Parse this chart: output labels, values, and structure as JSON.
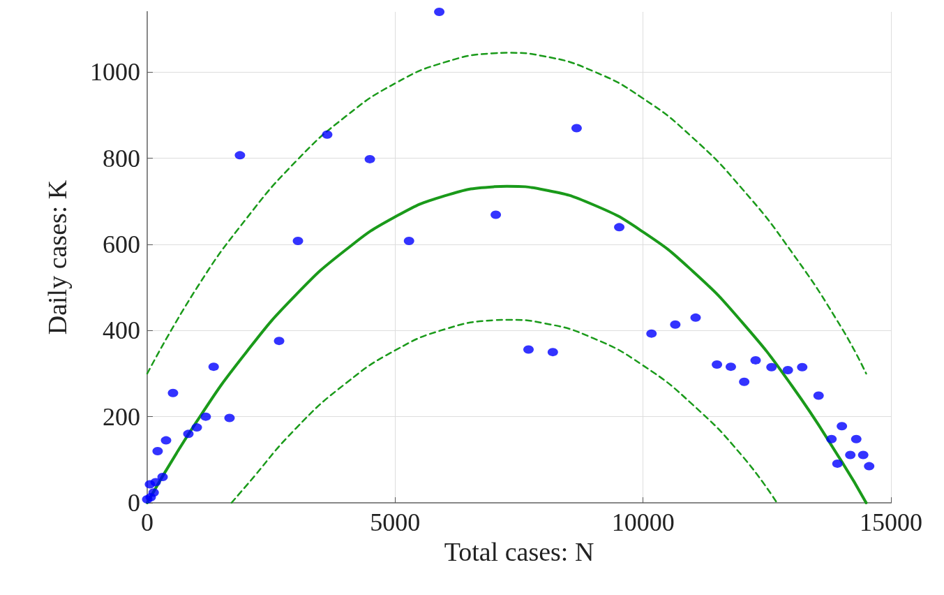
{
  "chart_data": {
    "type": "scatter",
    "xlabel": "Total cases: N",
    "ylabel": "Daily cases: K",
    "xlim": [
      0,
      15000
    ],
    "ylim": [
      0,
      1140
    ],
    "xticks": [
      0,
      5000,
      10000,
      15000
    ],
    "yticks": [
      0,
      200,
      400,
      600,
      800,
      1000
    ],
    "grid": true,
    "series": [
      {
        "color": "#0000ff",
        "marker": "circle",
        "x": [
          0,
          70,
          130,
          55,
          170,
          310,
          210,
          380,
          830,
          1000,
          1180,
          1660,
          520,
          1340,
          1870,
          2660,
          3040,
          3630,
          4490,
          5280,
          5890,
          7030,
          7690,
          8180,
          8660,
          9520,
          10170,
          10650,
          11060,
          11490,
          11770,
          12040,
          12270,
          12590,
          12920,
          13210,
          13540,
          13800,
          14010,
          14300,
          14180,
          14440,
          13920,
          14560
        ],
        "values": [
          8,
          13,
          24,
          43,
          48,
          60,
          120,
          145,
          160,
          175,
          200,
          197,
          255,
          316,
          807,
          376,
          608,
          855,
          798,
          608,
          1140,
          669,
          356,
          350,
          870,
          640,
          393,
          414,
          430,
          321,
          316,
          281,
          331,
          315,
          308,
          315,
          249,
          148,
          178,
          148,
          111,
          111,
          91,
          85
        ]
      },
      {
        "type": "line",
        "color": "#1a9a1a",
        "line_style": "solid",
        "marker": "none",
        "x": [
          0,
          1000,
          2000,
          3000,
          4000,
          5000,
          6000,
          7000,
          7250,
          8000,
          9000,
          10000,
          11000,
          12000,
          13000,
          14000,
          14500
        ],
        "values": [
          0,
          189,
          350,
          483,
          587,
          664,
          713,
          734,
          735,
          727,
          692,
          629,
          538,
          419,
          272,
          97,
          0
        ]
      },
      {
        "type": "line",
        "color": "#1a9a1a",
        "line_style": "dashed",
        "marker": "none",
        "x": [
          0,
          1000,
          2000,
          3000,
          4000,
          5000,
          6000,
          7000,
          7250,
          8000,
          9000,
          10000,
          11000,
          12000,
          13000,
          14000,
          14500
        ],
        "values": [
          300,
          499,
          660,
          793,
          897,
          974,
          1023,
          1044,
          1045,
          1037,
          1002,
          939,
          848,
          729,
          582,
          407,
          300
        ]
      },
      {
        "type": "line",
        "color": "#1a9a1a",
        "line_style": "dashed",
        "marker": "none",
        "x": [
          1700,
          2000,
          3000,
          4000,
          5000,
          6000,
          7000,
          7250,
          8000,
          9000,
          10000,
          11000,
          12000,
          12700
        ],
        "values": [
          0,
          40,
          173,
          277,
          354,
          403,
          424,
          425,
          417,
          382,
          319,
          228,
          109,
          0
        ]
      }
    ]
  }
}
